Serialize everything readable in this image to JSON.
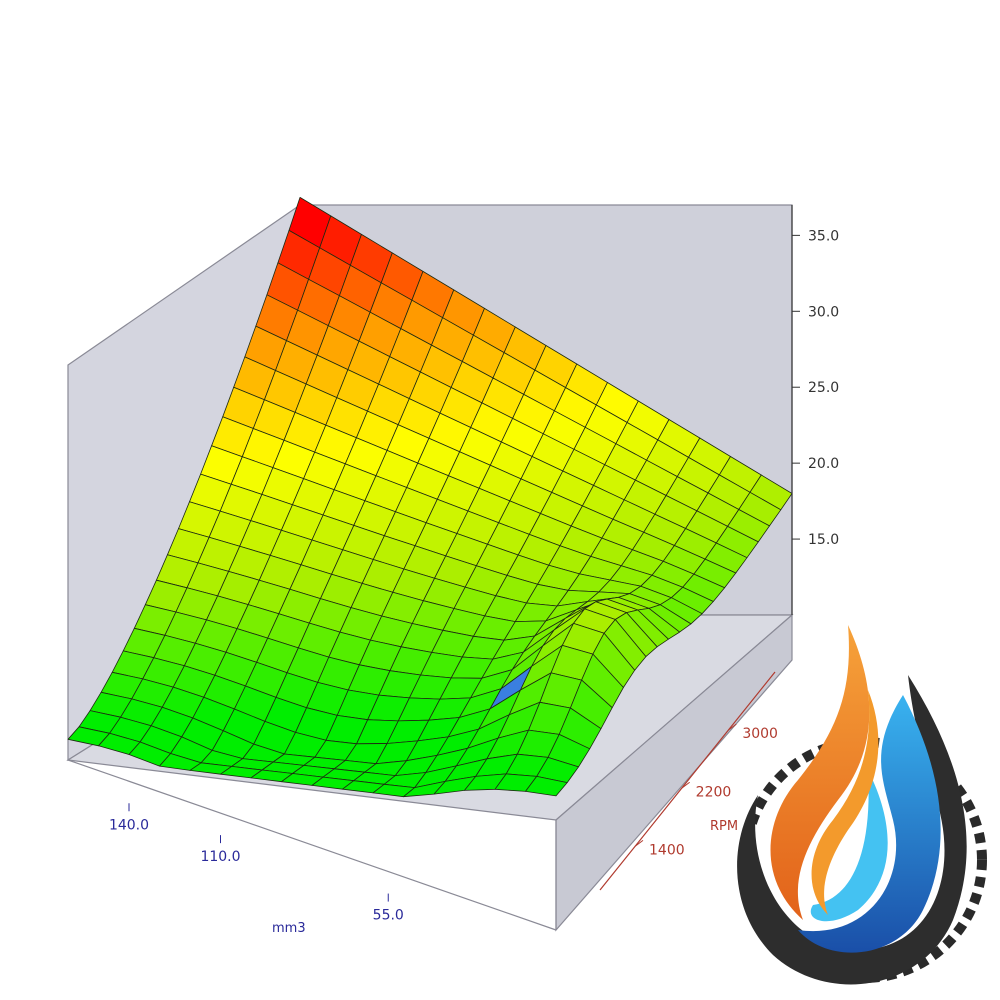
{
  "chart_data": {
    "type": "surface3d",
    "z_axis": {
      "ticks": [
        "35.0",
        "30.0",
        "25.0",
        "20.0",
        "15.0"
      ],
      "range": [
        10,
        37
      ]
    },
    "mm3_axis": {
      "label": "mm3",
      "ticks": [
        "140.0",
        "110.0",
        "55.0"
      ],
      "range": [
        0,
        160
      ]
    },
    "rpm_axis": {
      "label": "RPM",
      "ticks": [
        "3000",
        "2200",
        "1400"
      ],
      "range": [
        800,
        3800
      ]
    },
    "grid": {
      "rows": 21,
      "cols": 16
    },
    "highlighted_cell": {
      "row": 5,
      "col": 12
    },
    "colors": {
      "mm3_axis": "#2a2a9a",
      "rpm_axis": "#b03a2e",
      "z_axis": "#333333",
      "box_fill": "#cfd0da",
      "box_edge": "#8a8a96",
      "highlight": "#3a7fe0",
      "gradient": [
        "#00ee00",
        "#aaee00",
        "#ffff00",
        "#ff9a00",
        "#ff0000"
      ]
    },
    "logo": {
      "shape": "flame-drop-gear",
      "colors": [
        "#f28a1e",
        "#1f6fc4",
        "#2a2a2a"
      ]
    }
  }
}
